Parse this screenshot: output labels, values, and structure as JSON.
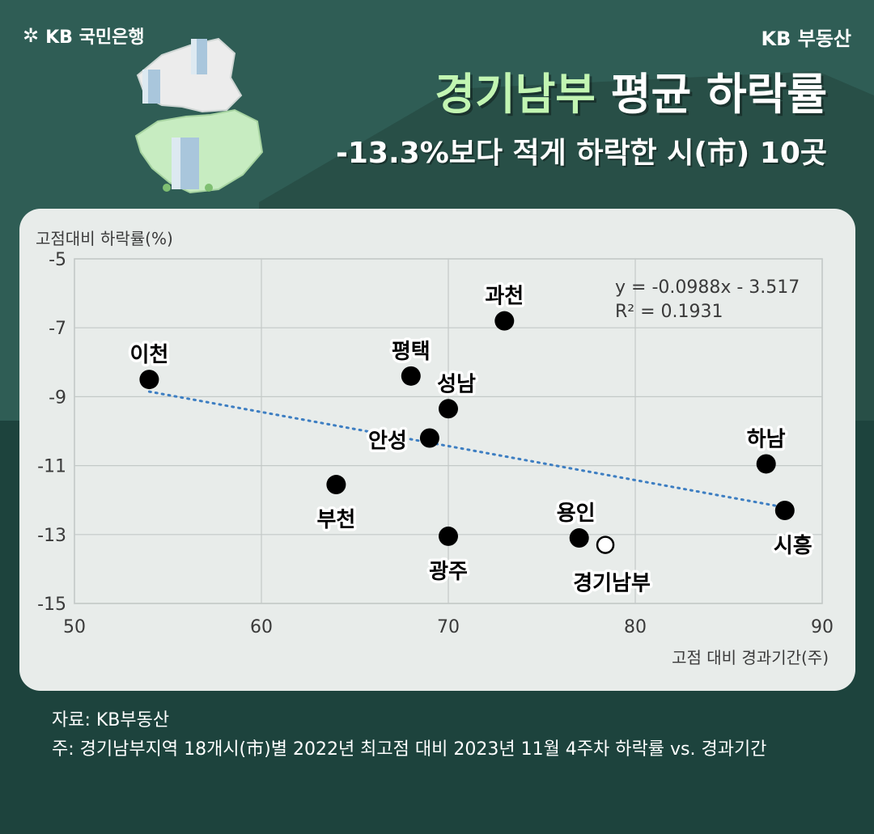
{
  "header": {
    "brand_left": "KB 국민은행",
    "brand_right": "KB 부동산",
    "title_accent": "경기남부",
    "title_rest": " 평균 하락률",
    "subtitle": "-13.3%보다 적게 하락한 시(市) 10곳"
  },
  "colors": {
    "background_top": "#2f5d55",
    "background_bottom": "#1d433d",
    "accent_text": "#c2f5b2",
    "card": "#e8ecea",
    "trendline": "#3d7ec2",
    "point": "#000000"
  },
  "icons": [
    "kb-star-icon",
    "map-illustration"
  ],
  "chart_data": {
    "type": "scatter",
    "ylabel": "고점대비 하락률(%)",
    "xlabel": "고점 대비 경과기간(주)",
    "xlim": [
      50,
      90
    ],
    "ylim": [
      -15,
      -5
    ],
    "x_ticks": [
      "50",
      "60",
      "70",
      "80",
      "90"
    ],
    "y_ticks": [
      "-5",
      "-7",
      "-9",
      "-11",
      "-13",
      "-15"
    ],
    "grid": true,
    "points": [
      {
        "label": "이천",
        "x": 54,
        "y": -8.5,
        "filled": true
      },
      {
        "label": "과천",
        "x": 73,
        "y": -6.8,
        "filled": true
      },
      {
        "label": "평택",
        "x": 68,
        "y": -8.4,
        "filled": true
      },
      {
        "label": "성남",
        "x": 70,
        "y": -9.35,
        "filled": true
      },
      {
        "label": "안성",
        "x": 69,
        "y": -10.2,
        "filled": true
      },
      {
        "label": "하남",
        "x": 87,
        "y": -10.95,
        "filled": true
      },
      {
        "label": "부천",
        "x": 64,
        "y": -11.55,
        "filled": true
      },
      {
        "label": "시흥",
        "x": 88,
        "y": -12.3,
        "filled": true
      },
      {
        "label": "용인",
        "x": 77,
        "y": -13.1,
        "filled": true
      },
      {
        "label": "광주",
        "x": 70,
        "y": -13.05,
        "filled": true
      },
      {
        "label": "경기남부",
        "x": 78.4,
        "y": -13.3,
        "filled": false
      }
    ],
    "trendline": {
      "x_start": 54,
      "x_end": 88,
      "slope": -0.0988,
      "intercept": -3.517
    },
    "equation": "y = -0.0988x - 3.517",
    "r_squared": "R² = 0.1931"
  },
  "footer": {
    "source": "자료: KB부동산",
    "note": "주: 경기남부지역 18개시(市)별 2022년 최고점 대비 2023년 11월 4주차 하락률 vs. 경과기간"
  }
}
